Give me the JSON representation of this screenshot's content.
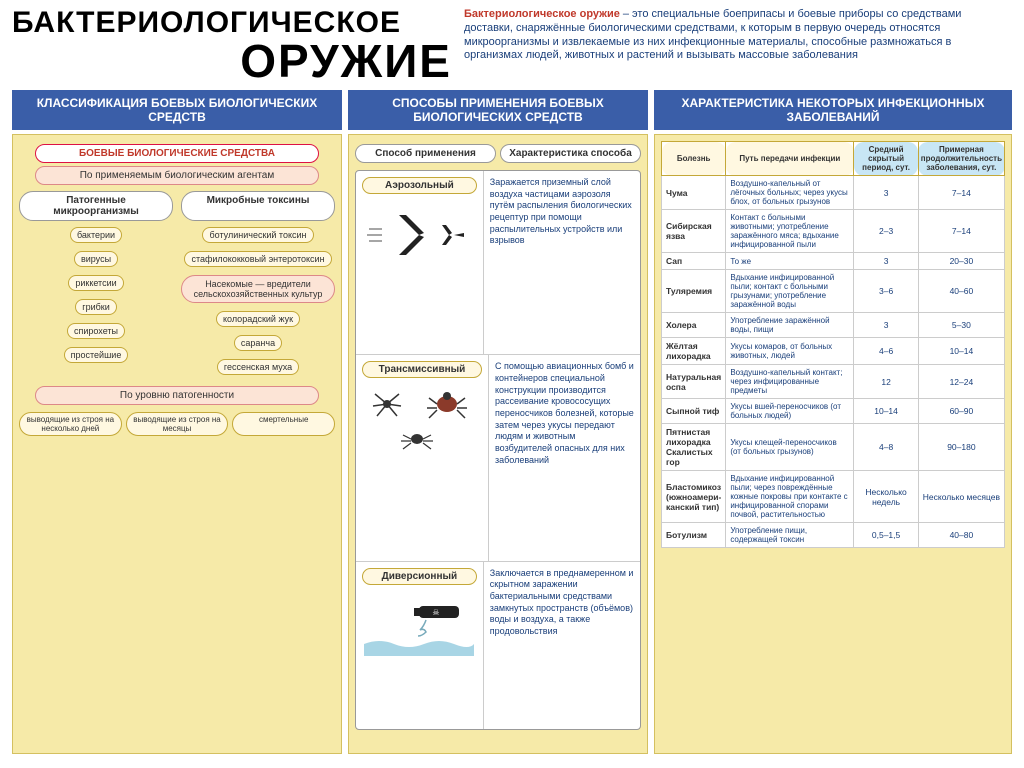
{
  "title": {
    "line1": "БАКТЕРИОЛОГИЧЕСКОЕ",
    "line2": "ОРУЖИЕ"
  },
  "definition": {
    "lead": "Бактериологическое оружие",
    "text": " – это специальные боеприпасы и боевые приборы со средствами доставки, снаряжённые биологическими средствами, к которым в первую очередь относятся микроорганизмы и извлекаемые из них инфекционные материалы, способные размножаться в организмах людей, животных и растений и вызывать массовые заболевания"
  },
  "section_headers": [
    "КЛАССИФИКАЦИЯ БОЕВЫХ БИОЛОГИЧЕСКИХ СРЕДСТВ",
    "СПОСОБЫ ПРИМЕНЕНИЯ БОЕВЫХ БИОЛОГИЧЕСКИХ СРЕДСТВ",
    "ХАРАКТЕРИСТИКА НЕКОТОРЫХ ИНФЕКЦИОННЫХ ЗАБОЛЕВАНИЙ"
  ],
  "colors": {
    "band": "#3a5ea8",
    "panel_bg": "#f6eaa8",
    "accent_red": "#c0392b",
    "pill_bg": "#fff8e1",
    "pill_border": "#c4a838",
    "text_blue": "#1a3f7a",
    "header_blue_bg": "#c8e6f5"
  },
  "tree": {
    "root": "БОЕВЫЕ БИОЛОГИЧЕСКИЕ СРЕДСТВА",
    "by_agent": "По применяемым биологическим агентам",
    "left_head": "Патогенные микроорганизмы",
    "right_head": "Микробные токсины",
    "right_sub": "Насекомые — вредители сельскохозяйственных культур",
    "left": [
      "бактерии",
      "вирусы",
      "риккетсии",
      "грибки",
      "спирохеты",
      "простейшие"
    ],
    "right": [
      "ботулинический токсин",
      "стафилококковый энтеротоксин",
      "колорадский жук",
      "саранча",
      "гессенская муха"
    ],
    "by_path": "По уровню патогенности",
    "bottom": [
      "выводящие из строя на несколько дней",
      "выводящие из строя на месяцы",
      "смертельные"
    ]
  },
  "methods": {
    "head_l": "Способ применения",
    "head_r": "Характеристика способа",
    "rows": [
      {
        "name": "Аэрозольный",
        "desc": "Заражается приземный слой воздуха частицами аэрозоля путём распыления биологических рецептур при помощи распылительных устройств или взрывов",
        "icon": "plane"
      },
      {
        "name": "Трансмиссивный",
        "desc": "С помощью авиационных бомб и контейнеров специальной конструкции производится рассеивание кровососущих переносчиков болезней, которые затем через укусы передают людям и животным возбудителей опасных для них заболеваний",
        "icon": "insects"
      },
      {
        "name": "Диверсионный",
        "desc": "Заключается в преднамеренном и скрытном заражении бактериальными средствами замкнутых пространств (объёмов) воды и воздуха, а также продовольствия",
        "icon": "bottle"
      }
    ]
  },
  "diseases": {
    "headers": [
      "Болезнь",
      "Путь передачи инфекции",
      "Средний скрытый период, сут.",
      "Примерная продолжительность заболевания, сут."
    ],
    "rows": [
      [
        "Чума",
        "Воздушно-капельный от лёгочных больных; через укусы блох, от больных грызунов",
        "3",
        "7–14"
      ],
      [
        "Сибирская язва",
        "Контакт с больными животными; употребление заражённого мяса; вдыхание инфицированной пыли",
        "2–3",
        "7–14"
      ],
      [
        "Сап",
        "То же",
        "3",
        "20–30"
      ],
      [
        "Туляремия",
        "Вдыхание инфицированной пыли; контакт с больными грызунами; употребление заражённой воды",
        "3–6",
        "40–60"
      ],
      [
        "Холера",
        "Употребление заражённой воды, пищи",
        "3",
        "5–30"
      ],
      [
        "Жёлтая лихорадка",
        "Укусы комаров, от больных животных, людей",
        "4–6",
        "10–14"
      ],
      [
        "Натуральная оспа",
        "Воздушно-капельный контакт; через инфицированные предметы",
        "12",
        "12–24"
      ],
      [
        "Сыпной тиф",
        "Укусы вшей-переносчиков (от больных людей)",
        "10–14",
        "60–90"
      ],
      [
        "Пятнистая лихорадка Скалистых гор",
        "Укусы клещей-переносчиков (от больных грызунов)",
        "4–8",
        "90–180"
      ],
      [
        "Бластомикоз (южноамери-канский тип)",
        "Вдыхание инфицированной пыли; через повреждённые кожные покровы при контакте с инфицированной спорами почвой, растительностью",
        "Несколько недель",
        "Несколько месяцев"
      ],
      [
        "Ботулизм",
        "Употребление пищи, содержащей токсин",
        "0,5–1,5",
        "40–80"
      ]
    ]
  }
}
